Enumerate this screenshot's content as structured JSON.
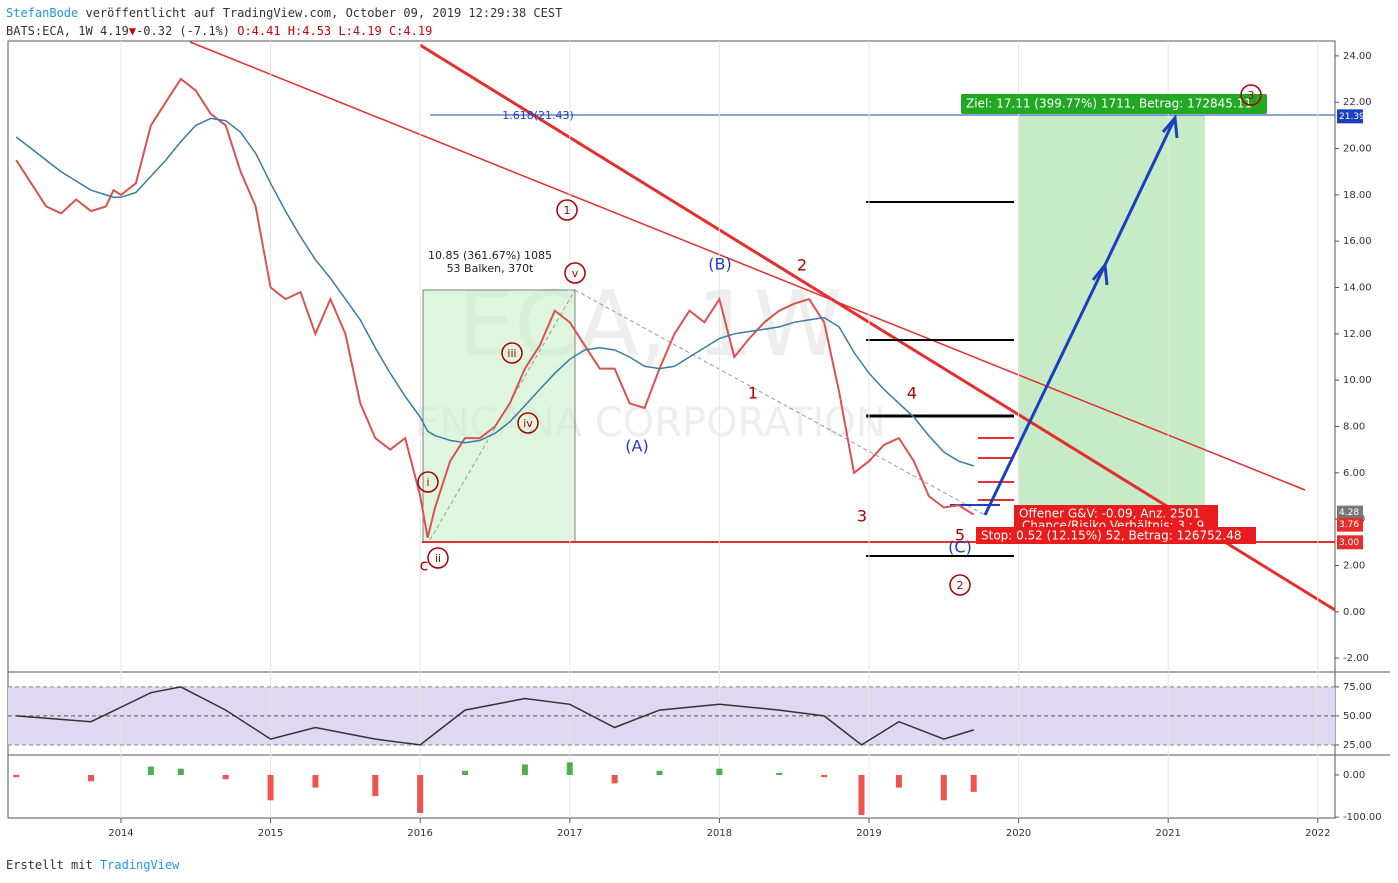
{
  "header": {
    "author": "StefanBode",
    "published": "veröffentlicht auf TradingView.com, October 09, 2019 12:29:38 CEST",
    "symbol": "BATS:ECA, 1W",
    "last": "4.19",
    "arrow": "▼",
    "change": "-0.32 (-7.1%)",
    "ohlc": "O:4.41 H:4.53 L:4.19 C:4.19"
  },
  "footer": {
    "made_with": "Erstellt mit",
    "brand": "TradingView"
  },
  "watermark": {
    "symbol": "ECA, 1W",
    "company": "ENCANA CORPORATION"
  },
  "annotations": [
    "1",
    "2",
    "(B)",
    "(A)",
    "1",
    "3",
    "4",
    "5",
    "(C)",
    "2",
    "3",
    "c",
    "ii",
    "i",
    "iii",
    "iv",
    "v",
    "10.85 (361.67%) 1085",
    "53 Balken, 370t",
    "1.618(21.43)"
  ],
  "boxes": {
    "target": "Ziel: 17.11 (399.77%) 1711, Betrag: 172845.11",
    "open": "Offener G&V: -0.09, Anz. 2501",
    "ratio": "Chance/Risiko Verhältnis: 3 : 9",
    "stop": "Stop: 0.52 (12.15%) 52, Betrag: 126752.48"
  },
  "chart_data": [
    {
      "type": "line",
      "x": [
        2013.3,
        2013.4,
        2013.5,
        2013.6,
        2013.7,
        2013.8,
        2013.9,
        2013.95,
        2014.0,
        2014.1,
        2014.2,
        2014.3,
        2014.4,
        2014.5,
        2014.6,
        2014.7,
        2014.8,
        2014.9,
        2015.0,
        2015.1,
        2015.2,
        2015.3,
        2015.4,
        2015.5,
        2015.6,
        2015.7,
        2015.8,
        2015.9,
        2016.0,
        2016.05,
        2016.1,
        2016.2,
        2016.3,
        2016.4,
        2016.5,
        2016.6,
        2016.7,
        2016.8,
        2016.9,
        2017.0,
        2017.1,
        2017.2,
        2017.3,
        2017.4,
        2017.5,
        2017.6,
        2017.7,
        2017.8,
        2017.9,
        2018.0,
        2018.1,
        2018.2,
        2018.3,
        2018.4,
        2018.5,
        2018.6,
        2018.7,
        2018.8,
        2018.9,
        2019.0,
        2019.1,
        2019.2,
        2019.3,
        2019.4,
        2019.5,
        2019.6,
        2019.7
      ],
      "series": [
        {
          "color": "#d9534f",
          "values": [
            19.5,
            18.5,
            17.5,
            17.2,
            17.8,
            17.3,
            17.5,
            18.2,
            18.0,
            18.5,
            21,
            22,
            23,
            22.5,
            21.5,
            21,
            19,
            17.5,
            14,
            13.5,
            13.8,
            12,
            13.5,
            12,
            9,
            7.5,
            7,
            7.5,
            5,
            3.2,
            4.5,
            6.5,
            7.5,
            7.5,
            8,
            9,
            10.5,
            11.5,
            13,
            12.5,
            11.5,
            10.5,
            10.5,
            9,
            8.8,
            10.5,
            12,
            13,
            12.5,
            13.5,
            11,
            11.8,
            12.5,
            13,
            13.3,
            13.5,
            12.5,
            9.5,
            6,
            6.5,
            7.2,
            7.5,
            6.5,
            5,
            4.5,
            4.6,
            4.19
          ]
        },
        {
          "color": "#3a7ca5",
          "values": [
            20.5,
            20,
            19.5,
            19,
            18.6,
            18.2,
            18,
            17.9,
            17.9,
            18.1,
            18.8,
            19.5,
            20.3,
            21,
            21.3,
            21.2,
            20.7,
            19.8,
            18.5,
            17.3,
            16.2,
            15.2,
            14.4,
            13.5,
            12.6,
            11.4,
            10.3,
            9.3,
            8.4,
            7.8,
            7.6,
            7.4,
            7.3,
            7.4,
            7.7,
            8.2,
            8.9,
            9.6,
            10.3,
            10.9,
            11.3,
            11.4,
            11.3,
            11,
            10.6,
            10.5,
            10.6,
            11,
            11.4,
            11.8,
            12,
            12.1,
            12.2,
            12.3,
            12.5,
            12.6,
            12.7,
            12.3,
            11.2,
            10.3,
            9.6,
            9,
            8.4,
            7.6,
            6.9,
            6.5,
            6.3
          ]
        }
      ],
      "xlim": [
        2013.245,
        2022.115
      ],
      "xticks": [
        2014,
        2015,
        2016,
        2017,
        2018,
        2019,
        2020,
        2021,
        2022
      ],
      "ylim": [
        -2.6,
        24.47
      ],
      "yticks": [
        {
          "value": -2,
          "label": "-2.00"
        },
        {
          "value": 0,
          "label": "0.00"
        },
        {
          "value": 2,
          "label": "2.00"
        },
        {
          "value": 4,
          "label": "4.00"
        },
        {
          "value": 6,
          "label": "6.00"
        },
        {
          "value": 8,
          "label": "8.00"
        },
        {
          "value": 10,
          "label": "10.00"
        },
        {
          "value": 12,
          "label": "12.00"
        },
        {
          "value": 14,
          "label": "14.00"
        },
        {
          "value": 16,
          "label": "16.00"
        },
        {
          "value": 18,
          "label": "18.00"
        },
        {
          "value": 20,
          "label": "20.00"
        },
        {
          "value": 22,
          "label": "22.00"
        },
        {
          "value": 24,
          "label": "24.00"
        }
      ],
      "price_tags": [
        {
          "value": 21.39,
          "color": "#1a3fbf"
        },
        {
          "value": 4.28,
          "color": "#777777"
        },
        {
          "value": 3.76,
          "color": "#e52e2e"
        },
        {
          "value": 3,
          "label": "3.00",
          "color": "#e52e2e"
        }
      ]
    },
    {
      "type": "line",
      "x": [
        2013.3,
        2013.8,
        2014.2,
        2014.4,
        2014.7,
        2015.0,
        2015.3,
        2015.7,
        2016.0,
        2016.3,
        2016.7,
        2017.0,
        2017.3,
        2017.6,
        2018.0,
        2018.4,
        2018.7,
        2018.95,
        2019.2,
        2019.5,
        2019.7
      ],
      "series": [
        {
          "color": "#333333",
          "values": [
            50,
            45,
            70,
            75,
            55,
            30,
            40,
            30,
            25,
            55,
            65,
            60,
            40,
            55,
            60,
            55,
            50,
            25,
            45,
            30,
            38
          ]
        }
      ],
      "ylim": [
        17.2,
        87
      ],
      "yticks": [
        {
          "value": 25,
          "label": "25.00"
        },
        {
          "value": 50,
          "label": "50.00"
        },
        {
          "value": 75,
          "label": "75.00"
        }
      ]
    },
    {
      "type": "bar",
      "x": [
        2013.3,
        2013.8,
        2014.2,
        2014.4,
        2014.7,
        2015.0,
        2015.3,
        2015.7,
        2016.0,
        2016.3,
        2016.7,
        2017.0,
        2017.3,
        2017.6,
        2018.0,
        2018.4,
        2018.7,
        2018.95,
        2019.2,
        2019.5,
        2019.7
      ],
      "values": [
        -5,
        -15,
        20,
        15,
        -10,
        -60,
        -30,
        -50,
        -90,
        10,
        25,
        30,
        -20,
        10,
        15,
        5,
        -5,
        -95,
        -30,
        -60,
        -40
      ],
      "colors": {
        "up": "#4caf50",
        "down": "#ef5350"
      },
      "ylim": [
        -102,
        45
      ],
      "yticks": [
        {
          "value": 0,
          "label": "0.00"
        },
        {
          "value": -100,
          "label": "-100.00"
        }
      ]
    }
  ]
}
